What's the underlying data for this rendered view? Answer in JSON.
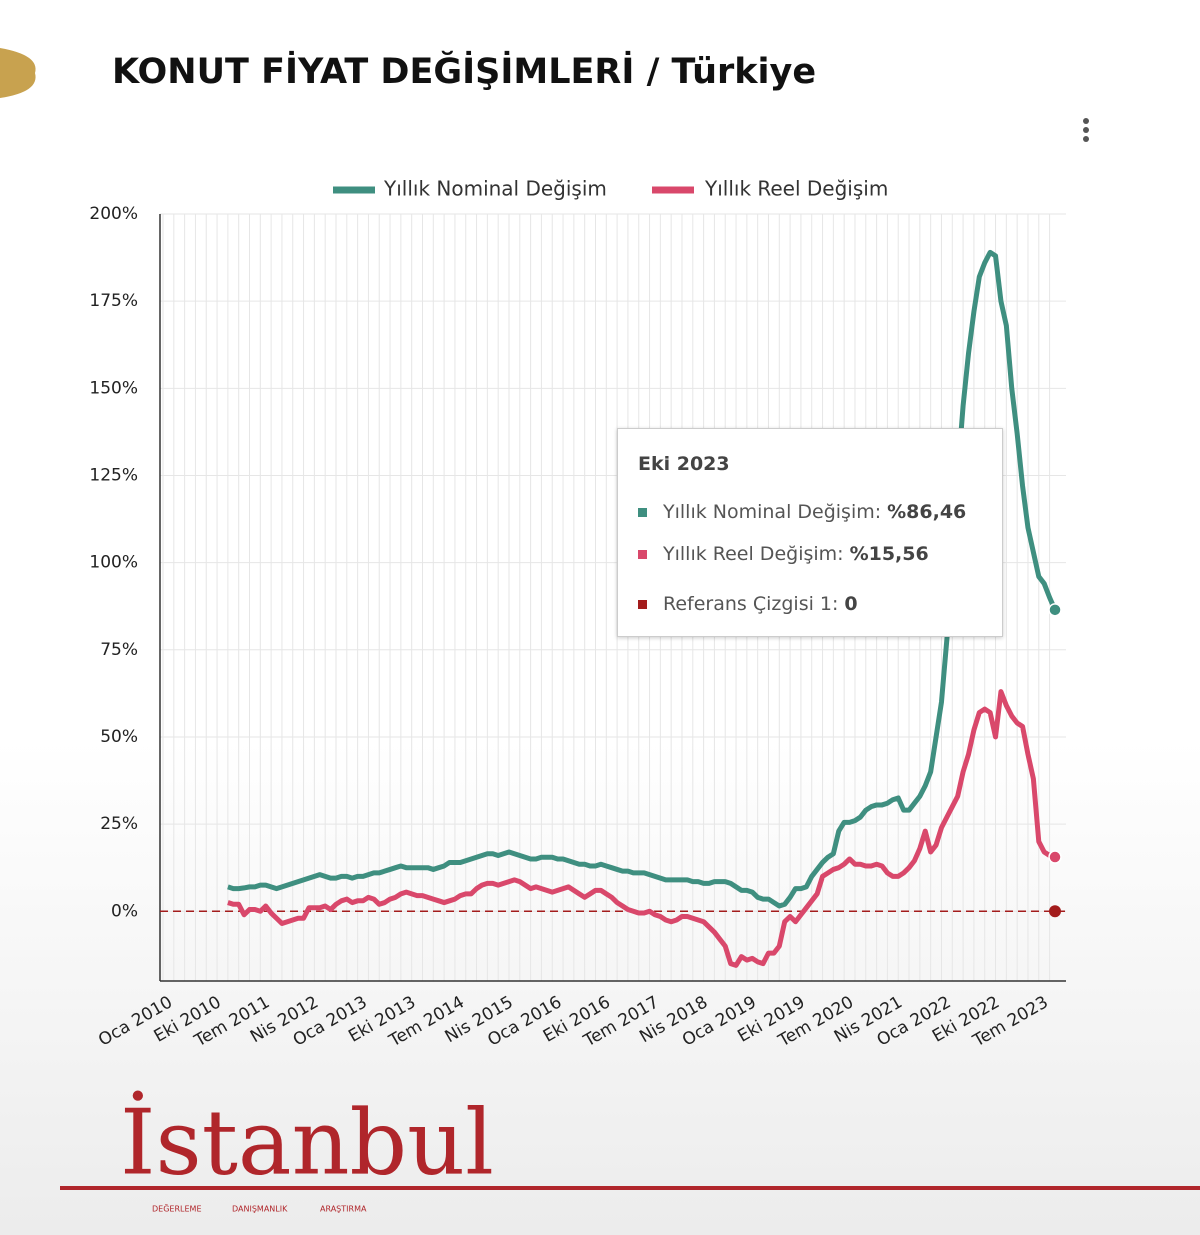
{
  "chart_data": {
    "type": "line",
    "title": "KONUT FİYAT DEĞİŞİMLERİ / Türkiye",
    "categories": [
      "Oca 2010",
      null,
      null,
      null,
      null,
      null,
      null,
      null,
      null,
      "Eki 2010",
      null,
      null,
      null,
      null,
      null,
      null,
      null,
      null,
      "Tem 2011",
      null,
      null,
      null,
      null,
      null,
      null,
      null,
      null,
      "Nis 2012",
      null,
      null,
      null,
      null,
      null,
      null,
      null,
      null,
      "Oca 2013",
      null,
      null,
      null,
      null,
      null,
      null,
      null,
      null,
      "Eki 2013",
      null,
      null,
      null,
      null,
      null,
      null,
      null,
      null,
      "Tem 2014",
      null,
      null,
      null,
      null,
      null,
      null,
      null,
      null,
      "Nis 2015",
      null,
      null,
      null,
      null,
      null,
      null,
      null,
      null,
      "Oca 2016",
      null,
      null,
      null,
      null,
      null,
      null,
      null,
      null,
      "Eki 2016",
      null,
      null,
      null,
      null,
      null,
      null,
      null,
      null,
      "Tem 2017",
      null,
      null,
      null,
      null,
      null,
      null,
      null,
      null,
      "Nis 2018",
      null,
      null,
      null,
      null,
      null,
      null,
      null,
      null,
      "Oca 2019",
      null,
      null,
      null,
      null,
      null,
      null,
      null,
      null,
      "Eki 2019",
      null,
      null,
      null,
      null,
      null,
      null,
      null,
      null,
      "Tem 2020",
      null,
      null,
      null,
      null,
      null,
      null,
      null,
      null,
      "Nis 2021",
      null,
      null,
      null,
      null,
      null,
      null,
      null,
      null,
      "Oca 2022",
      null,
      null,
      null,
      null,
      null,
      null,
      null,
      null,
      "Eki 2022",
      null,
      null,
      null,
      null,
      null,
      null,
      null,
      null,
      "Tem 2023",
      null,
      null,
      null
    ],
    "series": [
      {
        "name": "Yıllık Nominal Değişim",
        "color": "#3f8f80",
        "values": [
          null,
          null,
          null,
          null,
          null,
          null,
          null,
          null,
          null,
          null,
          null,
          null,
          7,
          6.5,
          6.5,
          6.7,
          7,
          7,
          7.5,
          7.5,
          7,
          6.5,
          7,
          7.5,
          8,
          8.5,
          9,
          9.5,
          10,
          10.5,
          10,
          9.5,
          9.5,
          10,
          10,
          9.5,
          10,
          10,
          10.5,
          11,
          11,
          11.5,
          12,
          12.5,
          13,
          12.5,
          12.5,
          12.5,
          12.5,
          12.5,
          12,
          12.5,
          13,
          14,
          14,
          14,
          14.5,
          15,
          15.5,
          16,
          16.5,
          16.5,
          16,
          16.5,
          17,
          16.5,
          16,
          15.5,
          15,
          15,
          15.5,
          15.5,
          15.5,
          15,
          15,
          14.5,
          14,
          13.5,
          13.5,
          13,
          13,
          13.5,
          13,
          12.5,
          12,
          11.5,
          11.5,
          11,
          11,
          11,
          10.5,
          10,
          9.5,
          9,
          9,
          9,
          9,
          9,
          8.5,
          8.5,
          8,
          8,
          8.5,
          8.5,
          8.5,
          8,
          7,
          6,
          6,
          5.5,
          4,
          3.5,
          3.5,
          2.5,
          1.5,
          2,
          4,
          6.5,
          6.5,
          7,
          10,
          12,
          14,
          15.5,
          16.5,
          23,
          25.5,
          25.5,
          26,
          27,
          29,
          30,
          30.5,
          30.5,
          31,
          32,
          32.5,
          29,
          29,
          31,
          33,
          36,
          40,
          50,
          60,
          78,
          100,
          125,
          145,
          160,
          172,
          182,
          186,
          189,
          188,
          175,
          168,
          150,
          137,
          122,
          110,
          103,
          96,
          94,
          90,
          86.46
        ]
      },
      {
        "name": "Yıllık Reel Değişim",
        "color": "#d9486b",
        "values": [
          null,
          null,
          null,
          null,
          null,
          null,
          null,
          null,
          null,
          null,
          null,
          null,
          2.5,
          2,
          2,
          -1,
          0.5,
          0.5,
          0,
          1.5,
          -0.5,
          -2,
          -3.5,
          -3,
          -2.5,
          -2,
          -2,
          1,
          1,
          1,
          1.5,
          0.5,
          2,
          3,
          3.5,
          2.5,
          3,
          3,
          4,
          3.5,
          2,
          2.5,
          3.5,
          4,
          5,
          5.5,
          5,
          4.5,
          4.5,
          4,
          3.5,
          3,
          2.5,
          3,
          3.5,
          4.5,
          5,
          5,
          6.5,
          7.5,
          8,
          8,
          7.5,
          8,
          8.5,
          9,
          8.5,
          7.5,
          6.5,
          7,
          6.5,
          6,
          5.5,
          6,
          6.5,
          7,
          6,
          5,
          4,
          5,
          6,
          6,
          5,
          4,
          2.5,
          1.5,
          0.5,
          0,
          -0.5,
          -0.5,
          0,
          -1,
          -1.5,
          -2.5,
          -3,
          -2.5,
          -1.5,
          -1.5,
          -2,
          -2.5,
          -3,
          -4.5,
          -6,
          -8,
          -10,
          -15,
          -15.5,
          -13,
          -14,
          -13.5,
          -14.5,
          -15,
          -12,
          -12,
          -10,
          -3,
          -1.5,
          -3,
          -1,
          1,
          3,
          5,
          10,
          11,
          12,
          12.5,
          13.5,
          15,
          13.5,
          13.5,
          13,
          13,
          13.5,
          13,
          11,
          10,
          10,
          11,
          12.5,
          14.5,
          18,
          23,
          17,
          19,
          24,
          27,
          30,
          33,
          40,
          45,
          52,
          57,
          58,
          57,
          50,
          63,
          59,
          56,
          54,
          53,
          45,
          38,
          20,
          17,
          16,
          15.56
        ]
      }
    ],
    "reference_line": {
      "name": "Referans Çizgisi 1",
      "value": 0,
      "color": "#a31c1c"
    },
    "ylim": [
      -20,
      200
    ],
    "yticks": [
      {
        "value": 0,
        "label": "0%"
      },
      {
        "value": 25,
        "label": "25%"
      },
      {
        "value": 50,
        "label": "50%"
      },
      {
        "value": 75,
        "label": "75%"
      },
      {
        "value": 100,
        "label": "100%"
      },
      {
        "value": 125,
        "label": "125%"
      },
      {
        "value": 150,
        "label": "150%"
      },
      {
        "value": 175,
        "label": "175%"
      },
      {
        "value": 200,
        "label": "200%"
      }
    ],
    "grid": true,
    "legend": "top",
    "tooltip": {
      "title": "Eki 2023",
      "items": [
        {
          "name": "Yıllık Nominal Değişim:",
          "label": "%86,46"
        },
        {
          "name": "Yıllık Reel Değişim:",
          "label": "%15,56"
        },
        {
          "name": "Referans Çizgisi 1:",
          "label": "0"
        }
      ]
    }
  },
  "logo": {
    "name": "İstanbul",
    "words": [
      "DEĞERLEME",
      "DANIŞMANLIK",
      "ARAŞTIRMA"
    ]
  }
}
